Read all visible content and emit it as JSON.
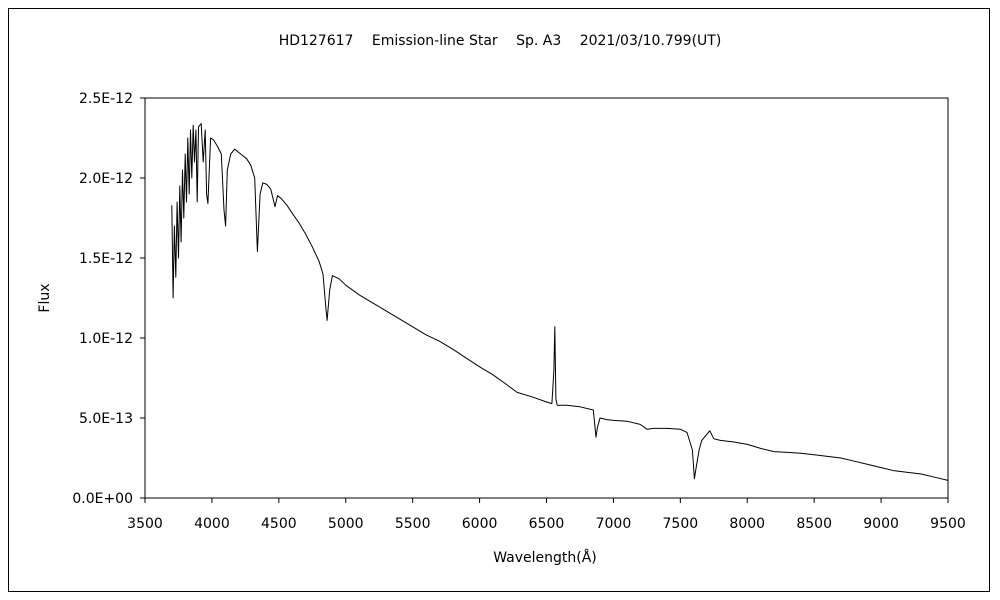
{
  "chart_data": {
    "type": "line",
    "title": "HD127617　 Emission-line Star　 Sp. A3　 2021/03/10.799(UT)",
    "xlabel": "Wavelength(Å)",
    "ylabel": "Flux",
    "xlim": [
      3500,
      9500
    ],
    "ylim": [
      0,
      2.5e-12
    ],
    "grid": false,
    "x_ticks": [
      3500,
      4000,
      4500,
      5000,
      5500,
      6000,
      6500,
      7000,
      7500,
      8000,
      8500,
      9000,
      9500
    ],
    "x_tick_labels": [
      "3500",
      "4000",
      "4500",
      "5000",
      "5500",
      "6000",
      "6500",
      "7000",
      "7500",
      "8000",
      "8500",
      "9000",
      "9500"
    ],
    "y_ticks": [
      0,
      5e-13,
      1e-12,
      1.5e-12,
      2e-12,
      2.5e-12
    ],
    "y_tick_labels": [
      "0.0E+00",
      "5.0E-13",
      "1.0E-12",
      "1.5E-12",
      "2.0E-12",
      "2.5E-12"
    ],
    "series": [
      {
        "color": "#000000",
        "points": [
          [
            3700,
            1.83e-12
          ],
          [
            3710,
            1.25e-12
          ],
          [
            3720,
            1.7e-12
          ],
          [
            3730,
            1.38e-12
          ],
          [
            3740,
            1.85e-12
          ],
          [
            3750,
            1.5e-12
          ],
          [
            3760,
            1.95e-12
          ],
          [
            3770,
            1.6e-12
          ],
          [
            3780,
            2.05e-12
          ],
          [
            3790,
            1.75e-12
          ],
          [
            3800,
            2.15e-12
          ],
          [
            3810,
            1.85e-12
          ],
          [
            3820,
            2.25e-12
          ],
          [
            3830,
            1.9e-12
          ],
          [
            3840,
            2.3e-12
          ],
          [
            3850,
            2e-12
          ],
          [
            3860,
            2.33e-12
          ],
          [
            3870,
            2.1e-12
          ],
          [
            3880,
            2.3e-12
          ],
          [
            3890,
            1.85e-12
          ],
          [
            3900,
            2.32e-12
          ],
          [
            3920,
            2.34e-12
          ],
          [
            3935,
            2.1e-12
          ],
          [
            3950,
            2.3e-12
          ],
          [
            3960,
            1.9e-12
          ],
          [
            3970,
            1.84e-12
          ],
          [
            3990,
            2.25e-12
          ],
          [
            4010,
            2.24e-12
          ],
          [
            4040,
            2.2e-12
          ],
          [
            4070,
            2.15e-12
          ],
          [
            4090,
            1.8e-12
          ],
          [
            4102,
            1.7e-12
          ],
          [
            4115,
            2.05e-12
          ],
          [
            4140,
            2.15e-12
          ],
          [
            4170,
            2.18e-12
          ],
          [
            4200,
            2.16e-12
          ],
          [
            4230,
            2.14e-12
          ],
          [
            4260,
            2.12e-12
          ],
          [
            4290,
            2.08e-12
          ],
          [
            4320,
            2e-12
          ],
          [
            4340,
            1.54e-12
          ],
          [
            4360,
            1.9e-12
          ],
          [
            4380,
            1.97e-12
          ],
          [
            4410,
            1.96e-12
          ],
          [
            4440,
            1.93e-12
          ],
          [
            4471,
            1.82e-12
          ],
          [
            4490,
            1.89e-12
          ],
          [
            4520,
            1.87e-12
          ],
          [
            4560,
            1.83e-12
          ],
          [
            4600,
            1.78e-12
          ],
          [
            4650,
            1.72e-12
          ],
          [
            4700,
            1.65e-12
          ],
          [
            4750,
            1.57e-12
          ],
          [
            4800,
            1.48e-12
          ],
          [
            4830,
            1.4e-12
          ],
          [
            4850,
            1.2e-12
          ],
          [
            4861,
            1.11e-12
          ],
          [
            4880,
            1.3e-12
          ],
          [
            4900,
            1.39e-12
          ],
          [
            4950,
            1.37e-12
          ],
          [
            5000,
            1.33e-12
          ],
          [
            5100,
            1.27e-12
          ],
          [
            5200,
            1.22e-12
          ],
          [
            5300,
            1.17e-12
          ],
          [
            5400,
            1.12e-12
          ],
          [
            5500,
            1.07e-12
          ],
          [
            5600,
            1.02e-12
          ],
          [
            5700,
            9.8e-13
          ],
          [
            5800,
            9.3e-13
          ],
          [
            5890,
            8.8e-13
          ],
          [
            6000,
            8.2e-13
          ],
          [
            6100,
            7.7e-13
          ],
          [
            6200,
            7.1e-13
          ],
          [
            6280,
            6.6e-13
          ],
          [
            6400,
            6.3e-13
          ],
          [
            6500,
            6e-13
          ],
          [
            6540,
            5.9e-13
          ],
          [
            6555,
            8e-13
          ],
          [
            6562,
            1.07e-12
          ],
          [
            6570,
            6.2e-13
          ],
          [
            6580,
            5.8e-13
          ],
          [
            6650,
            5.8e-13
          ],
          [
            6750,
            5.7e-13
          ],
          [
            6850,
            5.5e-13
          ],
          [
            6870,
            3.8e-13
          ],
          [
            6880,
            4.4e-13
          ],
          [
            6900,
            5e-13
          ],
          [
            6950,
            4.9e-13
          ],
          [
            7000,
            4.85e-13
          ],
          [
            7100,
            4.8e-13
          ],
          [
            7200,
            4.6e-13
          ],
          [
            7250,
            4.3e-13
          ],
          [
            7300,
            4.35e-13
          ],
          [
            7400,
            4.35e-13
          ],
          [
            7500,
            4.3e-13
          ],
          [
            7550,
            4.1e-13
          ],
          [
            7590,
            3e-13
          ],
          [
            7605,
            1.2e-13
          ],
          [
            7620,
            2e-13
          ],
          [
            7640,
            3e-13
          ],
          [
            7660,
            3.6e-13
          ],
          [
            7700,
            4e-13
          ],
          [
            7720,
            4.2e-13
          ],
          [
            7750,
            3.7e-13
          ],
          [
            7800,
            3.6e-13
          ],
          [
            7900,
            3.5e-13
          ],
          [
            8000,
            3.35e-13
          ],
          [
            8100,
            3.1e-13
          ],
          [
            8200,
            2.9e-13
          ],
          [
            8300,
            2.85e-13
          ],
          [
            8400,
            2.8e-13
          ],
          [
            8500,
            2.7e-13
          ],
          [
            8600,
            2.6e-13
          ],
          [
            8700,
            2.5e-13
          ],
          [
            8800,
            2.3e-13
          ],
          [
            8900,
            2.1e-13
          ],
          [
            9000,
            1.9e-13
          ],
          [
            9100,
            1.7e-13
          ],
          [
            9200,
            1.6e-13
          ],
          [
            9300,
            1.5e-13
          ],
          [
            9400,
            1.3e-13
          ],
          [
            9500,
            1.1e-13
          ]
        ]
      }
    ]
  }
}
